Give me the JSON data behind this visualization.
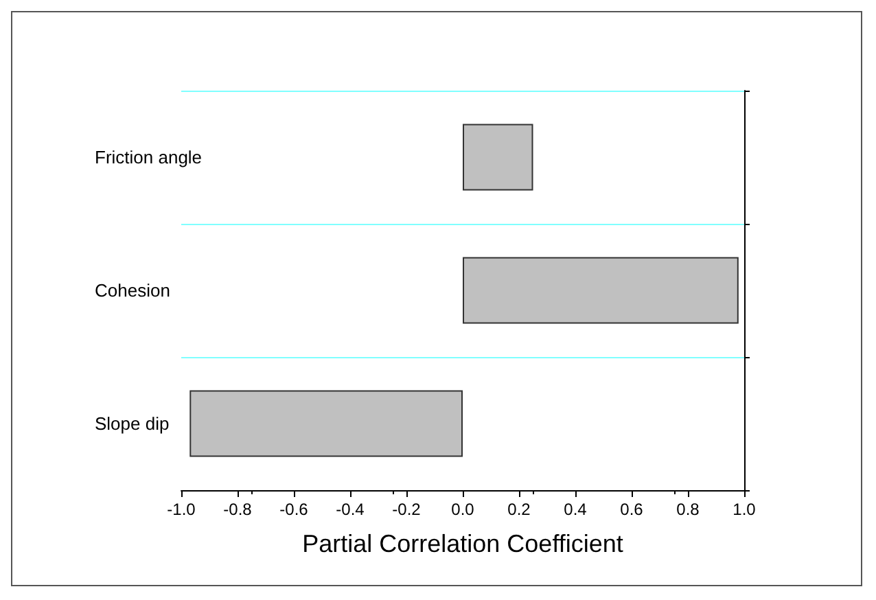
{
  "chart_data": {
    "type": "bar",
    "orientation": "horizontal",
    "xlabel": "Partial Correlation Coefficient",
    "categories": [
      "Friction angle",
      "Cohesion",
      "Slope dip"
    ],
    "values": [
      0.25,
      0.98,
      -0.97
    ],
    "color": "#c0c0c0",
    "xlim": [
      -1,
      1
    ],
    "xticks": [
      {
        "value": -1,
        "label": "-1.0"
      },
      {
        "value": -0.8,
        "label": "-0.8"
      },
      {
        "value": -0.6,
        "label": "-0.6"
      },
      {
        "value": -0.4,
        "label": "-0.4"
      },
      {
        "value": -0.2,
        "label": "-0.2"
      },
      {
        "value": 0,
        "label": "0.0"
      },
      {
        "value": 0.2,
        "label": "0.2"
      },
      {
        "value": 0.4,
        "label": "0.4"
      },
      {
        "value": 0.6,
        "label": "0.6"
      },
      {
        "value": 0.8,
        "label": "0.8"
      },
      {
        "value": 1,
        "label": "1.0"
      }
    ],
    "grid": "y"
  }
}
